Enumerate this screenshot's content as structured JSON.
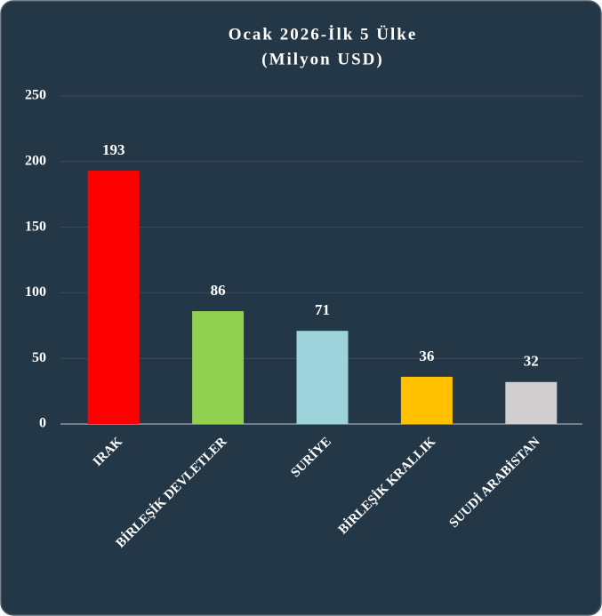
{
  "chart_data": {
    "type": "bar",
    "title": "Ocak 2026-İlk 5 Ülke",
    "subtitle": "(Milyon USD)",
    "categories": [
      "IRAK",
      "BİRLEŞİK DEVLETLER",
      "SURİYE",
      "BİRLEŞİK KRALLIK",
      "SUUDİ ARABİSTAN"
    ],
    "values": [
      193,
      86,
      71,
      36,
      32
    ],
    "colors": [
      "#ff0000",
      "#92d050",
      "#9fd3dc",
      "#ffc000",
      "#d0cece"
    ],
    "ylim": [
      0,
      250
    ],
    "yticks": [
      0,
      50,
      100,
      150,
      200,
      250
    ],
    "grid": true
  }
}
